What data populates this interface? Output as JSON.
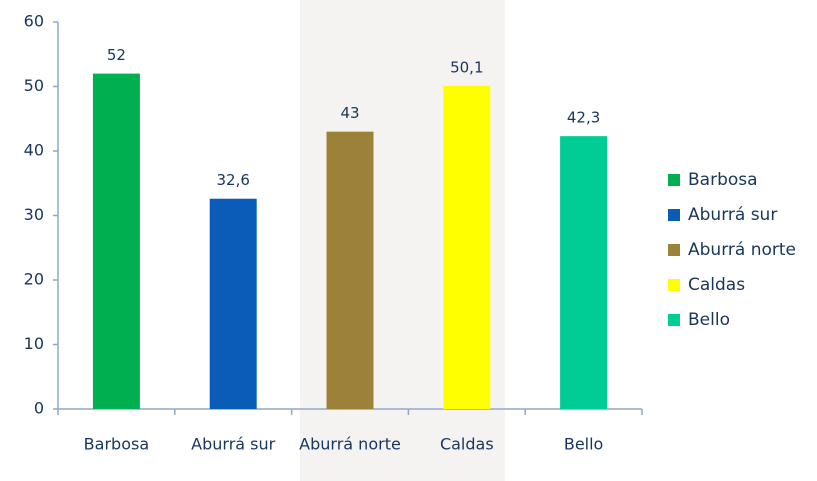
{
  "chart_data": {
    "type": "bar",
    "categories": [
      "Barbosa",
      "Aburrá sur",
      "Aburrá norte",
      "Caldas",
      "Bello"
    ],
    "values": [
      52,
      32.6,
      43,
      50.1,
      42.3
    ],
    "value_labels": [
      "52",
      "32,6",
      "43",
      "50,1",
      "42,3"
    ],
    "colors": [
      "#00b050",
      "#0a5cb8",
      "#9c8138",
      "#ffff00",
      "#00cc96"
    ],
    "ylim": [
      0,
      60
    ],
    "yticks": [
      0,
      10,
      20,
      30,
      40,
      50,
      60
    ],
    "grid": false,
    "legend": "right"
  }
}
